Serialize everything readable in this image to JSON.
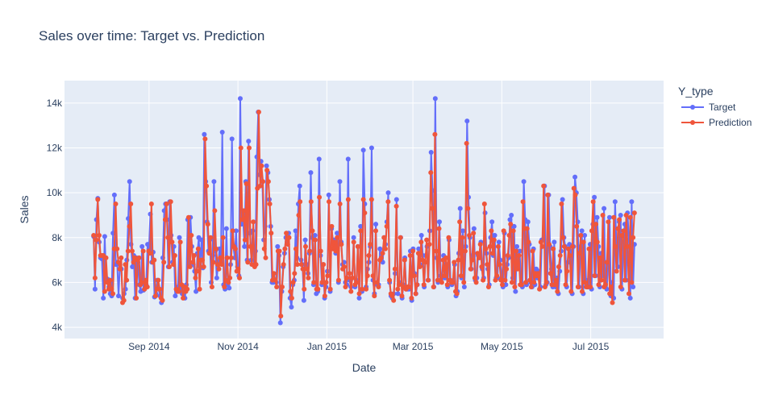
{
  "chart_data": {
    "type": "line",
    "title": "Sales over time: Target vs. Prediction",
    "xlabel": "Date",
    "ylabel": "Sales",
    "x_ticks": [
      "Sep 2014",
      "Nov 2014",
      "Jan 2015",
      "Mar 2015",
      "May 2015",
      "Jul 2015"
    ],
    "y_ticks": [
      "4k",
      "6k",
      "8k",
      "10k",
      "12k",
      "14k"
    ],
    "x_range": [
      "2014-07-05",
      "2015-08-20"
    ],
    "ylim": [
      3500,
      15000
    ],
    "x_start": "2014-07-25",
    "x_end": "2015-07-31",
    "grid": true,
    "legend": {
      "title": "Y_type",
      "placement": "top-right",
      "entries": [
        "Target",
        "Prediction"
      ]
    },
    "series": [
      {
        "name": "Target",
        "color": "#636efa",
        "values": [
          8050,
          5700,
          8800,
          9750,
          7800,
          7100,
          7050,
          5300,
          8050,
          6100,
          6150,
          5800,
          5500,
          5400,
          8200,
          9900,
          6800,
          6900,
          5400,
          6800,
          6600,
          5300,
          5500,
          5700,
          7000,
          8850,
          10500,
          7700,
          6700,
          7200,
          5300,
          7100,
          6900,
          5900,
          5600,
          7600,
          5650,
          6000,
          5900,
          7700,
          7500,
          9050,
          6900,
          7350,
          5350,
          5500,
          6100,
          5700,
          5400,
          5100,
          7100,
          9200,
          9500,
          8800,
          6700,
          9600,
          8100,
          6900,
          7600,
          5400,
          5600,
          5800,
          8000,
          5700,
          5500,
          5600,
          5300,
          5900,
          8800,
          6800,
          8900,
          7600,
          6800,
          6500,
          5600,
          7300,
          8000,
          6700,
          7900,
          6650,
          12600,
          10500,
          8700,
          7400,
          7900,
          6000,
          7200,
          10500,
          7400,
          6200,
          6800,
          7500,
          6900,
          12700,
          5900,
          5700,
          8400,
          5900,
          5750,
          6800,
          12400,
          7600,
          7100,
          8300,
          6700,
          6300,
          14200,
          8600,
          8900,
          7600,
          10500,
          7000,
          12300,
          8200,
          7000,
          8300,
          6800,
          7400,
          11600,
          13600,
          10800,
          11400,
          10500,
          7900,
          8500,
          11200,
          10900,
          9700,
          8500,
          6000,
          6000,
          6100,
          6000,
          7600,
          7200,
          4200,
          5600,
          6700,
          7300,
          8000,
          7800,
          8200,
          5300,
          4900,
          5900,
          6100,
          8300,
          7100,
          9500,
          10300,
          7000,
          6800,
          5200,
          7900,
          6800,
          6400,
          7300,
          10900,
          8000,
          5900,
          8100,
          5500,
          5600,
          11500,
          7200,
          5900,
          6800,
          5300,
          5800,
          6500,
          9900,
          5600,
          8400,
          7900,
          7900,
          7300,
          8200,
          6000,
          10500,
          7800,
          6800,
          6900,
          6000,
          5900,
          11500,
          6100,
          5800,
          6200,
          8000,
          5800,
          6100,
          7600,
          5300,
          8500,
          5600,
          11900,
          9500,
          5800,
          6600,
          6900,
          7600,
          12000,
          6100,
          5500,
          8600,
          5900,
          5900,
          7500,
          7300,
          6900,
          8000,
          7700,
          8700,
          10000,
          6000,
          5400,
          5300,
          5500,
          6400,
          9700,
          5500,
          6000,
          8000,
          5300,
          5900,
          7100,
          5700,
          5700,
          5700,
          7400,
          5200,
          7500,
          6400,
          5500,
          5900,
          7500,
          6800,
          8100,
          7200,
          5800,
          7200,
          7600,
          6100,
          8300,
          11800,
          10100,
          5800,
          14200,
          7100,
          6000,
          8700,
          6300,
          6200,
          7200,
          6200,
          6800,
          5800,
          7900,
          6100,
          5900,
          6000,
          6800,
          5400,
          5600,
          7300,
          9300,
          6200,
          8300,
          5800,
          7600,
          13200,
          9800,
          8000,
          6600,
          7200,
          8400,
          6100,
          6200,
          7200,
          7100,
          7800,
          6600,
          6200,
          9100,
          7300,
          6600,
          5900,
          8000,
          8700,
          7200,
          8100,
          6200,
          6200,
          7800,
          7000,
          6200,
          5800,
          8200,
          5900,
          6800,
          7100,
          8800,
          9000,
          6200,
          8500,
          5600,
          7600,
          6800,
          7400,
          5900,
          5800,
          10500,
          8800,
          5900,
          8700,
          7700,
          6000,
          5800,
          7500,
          5900,
          6600,
          6200,
          6500,
          5800,
          7900,
          7900,
          10300,
          5900,
          6000,
          9900,
          7600,
          6600,
          5800,
          7800,
          5800,
          6200,
          5500,
          6500,
          7400,
          9700,
          8000,
          7600,
          5800,
          6900,
          7700,
          7400,
          5500,
          7600,
          10700,
          10000,
          8700,
          5800,
          7600,
          8300,
          5500,
          8100,
          6100,
          5800,
          5800,
          7700,
          5700,
          8600,
          9800,
          6300,
          8900,
          7600,
          5800,
          7300,
          6300,
          9300,
          5800,
          5700,
          6800,
          8900,
          5400,
          6000,
          5300,
          9600,
          7600,
          6700,
          8700,
          9000,
          5700,
          7800,
          8600,
          6100,
          9100,
          7900,
          5300,
          9600,
          5800,
          7700
        ]
      },
      {
        "name": "Prediction",
        "color": "#ef553b",
        "values": [
          8100,
          6200,
          7900,
          9700,
          8100,
          7200,
          7200,
          7200,
          5600,
          7100,
          6000,
          5700,
          6100,
          5700,
          5500,
          7500,
          9500,
          7500,
          6900,
          6600,
          7100,
          5100,
          5200,
          6800,
          6100,
          7400,
          8500,
          9500,
          7400,
          6900,
          7100,
          5300,
          7000,
          7100,
          5900,
          6000,
          7400,
          5700,
          6100,
          5800,
          7400,
          7300,
          9500,
          6900,
          7000,
          5400,
          5700,
          6100,
          5700,
          5300,
          5200,
          6900,
          8800,
          9500,
          8000,
          6700,
          9600,
          7800,
          6800,
          7200,
          5700,
          5600,
          5600,
          7800,
          5900,
          5300,
          5800,
          5600,
          5700,
          8900,
          6700,
          8100,
          6900,
          7200,
          6200,
          6500,
          7500,
          5700,
          7000,
          7000,
          6700,
          12400,
          10300,
          8600,
          7300,
          8000,
          5800,
          6900,
          9200,
          7500,
          6800,
          6600,
          7100,
          6800,
          8000,
          5800,
          6100,
          7100,
          6000,
          6200,
          7100,
          8300,
          7600,
          7500,
          6500,
          6600,
          6200,
          12000,
          8800,
          9200,
          7900,
          10400,
          6900,
          12000,
          7600,
          6800,
          8700,
          6700,
          6800,
          10200,
          13600,
          10300,
          11200,
          10500,
          7500,
          7100,
          11000,
          10500,
          9500,
          8200,
          6100,
          6400,
          6100,
          5800,
          7400,
          7400,
          4500,
          5800,
          6800,
          7500,
          8200,
          7700,
          8000,
          5600,
          5300,
          6000,
          6400,
          7500,
          6800,
          9000,
          9600,
          6800,
          6600,
          5700,
          7600,
          6600,
          6200,
          7400,
          9600,
          8300,
          6000,
          7900,
          5700,
          5700,
          9800,
          7400,
          6000,
          6800,
          5400,
          6000,
          6300,
          9600,
          5700,
          8500,
          7500,
          7800,
          7400,
          8000,
          6100,
          9500,
          7700,
          6600,
          6700,
          5800,
          6200,
          9700,
          6400,
          5600,
          6200,
          7800,
          5900,
          6000,
          7600,
          5500,
          8300,
          5700,
          9700,
          9100,
          5700,
          6300,
          7200,
          7700,
          9700,
          6300,
          5400,
          8300,
          6000,
          5800,
          7000,
          7100,
          7300,
          8000,
          7500,
          8500,
          9600,
          6100,
          5500,
          5400,
          5200,
          6600,
          9400,
          5700,
          5900,
          8000,
          5400,
          5800,
          7000,
          5700,
          5800,
          5800,
          7200,
          5300,
          7400,
          6300,
          5500,
          5900,
          7300,
          6700,
          7800,
          7000,
          5900,
          6900,
          7900,
          6100,
          7700,
          10900,
          9300,
          5800,
          12600,
          7400,
          6100,
          8400,
          6100,
          6000,
          7000,
          6300,
          7100,
          5900,
          8000,
          6100,
          6000,
          6000,
          6900,
          5600,
          5500,
          7000,
          8700,
          6300,
          8000,
          6000,
          7400,
          12200,
          9300,
          8100,
          6600,
          7000,
          8200,
          6200,
          6000,
          7300,
          7100,
          7700,
          6700,
          6100,
          9500,
          7500,
          6800,
          5800,
          7600,
          8300,
          7300,
          7900,
          6100,
          6300,
          7600,
          6800,
          6100,
          5900,
          8300,
          6100,
          6600,
          7200,
          8100,
          8600,
          6000,
          8300,
          5800,
          7400,
          6600,
          7200,
          5900,
          5900,
          9600,
          8400,
          6000,
          8400,
          7800,
          6100,
          5800,
          7400,
          6000,
          6400,
          6300,
          6400,
          5700,
          7800,
          7600,
          10300,
          5800,
          6000,
          9900,
          7700,
          6400,
          5900,
          7500,
          5900,
          6100,
          5600,
          6700,
          7200,
          9500,
          8000,
          7600,
          5900,
          6500,
          7500,
          7200,
          5600,
          7600,
          10200,
          9900,
          8500,
          5800,
          7300,
          8100,
          5600,
          7800,
          6000,
          5800,
          5800,
          7500,
          5800,
          8300,
          9600,
          6300,
          8600,
          7800,
          5900,
          7100,
          6100,
          9000,
          5800,
          5900,
          6900,
          8700,
          5500,
          5800,
          5100,
          8900,
          7600,
          6500,
          8400,
          8800,
          5800,
          8100,
          8300,
          6100,
          9000,
          7600,
          5500,
          8900,
          6000,
          8000,
          9100
        ]
      }
    ]
  }
}
